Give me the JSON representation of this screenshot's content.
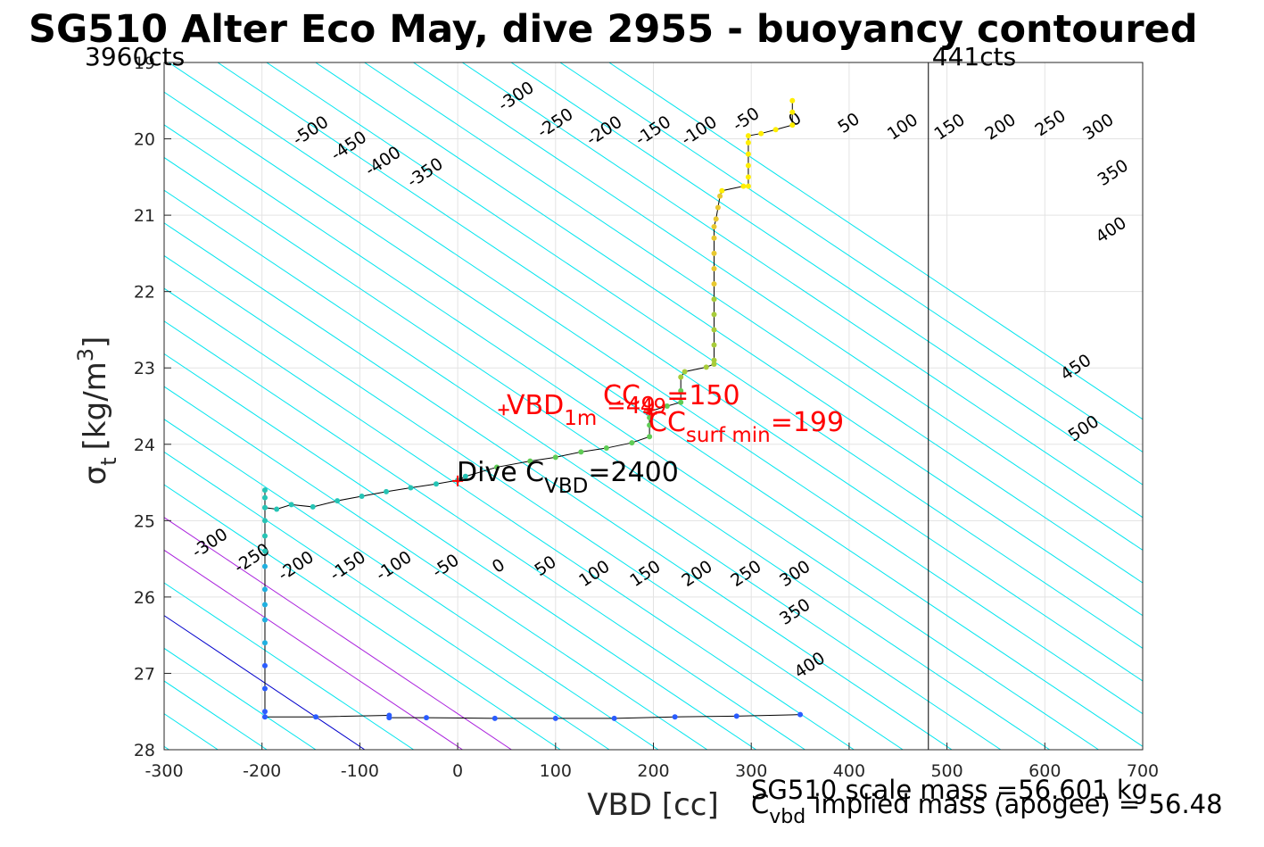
{
  "chart_data": {
    "type": "line",
    "title": "SG510 Alter Eco May, dive 2955 - buoyancy contoured",
    "xlabel": "VBD [cc]",
    "ylabel": {
      "main": "σ",
      "sub": "t",
      "units": "[kg/m",
      "sup": "3",
      "close": "]"
    },
    "xlim": [
      -300,
      700
    ],
    "ylim": [
      19,
      28
    ],
    "y_reversed": true,
    "grid": true,
    "x_ticks": [
      -300,
      -200,
      -100,
      0,
      100,
      200,
      300,
      400,
      500,
      600,
      700
    ],
    "y_ticks": [
      19,
      20,
      21,
      22,
      23,
      24,
      25,
      26,
      27,
      28
    ],
    "contour_levels": [
      -500,
      -450,
      -400,
      -350,
      -300,
      -250,
      -200,
      -150,
      -100,
      -50,
      0,
      50,
      100,
      150,
      200,
      250,
      300,
      350,
      400,
      450,
      500
    ],
    "contour_slope_cc_per_kgm3": 116.7,
    "contour_zero_vbd_at_sigma28": -95,
    "contour_colors": {
      "default": "#00e5ee",
      "zero": "#0000cc",
      "highlight": "#aa22dd"
    },
    "highlight_levels": [
      100,
      150
    ],
    "contour_labels_top": [
      {
        "level": -500,
        "vbd": -150,
        "sigma": 19.9
      },
      {
        "level": -450,
        "vbd": -111,
        "sigma": 20.1
      },
      {
        "level": -400,
        "vbd": -76,
        "sigma": 20.3
      },
      {
        "level": -350,
        "vbd": -33,
        "sigma": 20.45
      },
      {
        "level": -300,
        "vbd": 60,
        "sigma": 19.45
      },
      {
        "level": -250,
        "vbd": 100,
        "sigma": 19.8
      },
      {
        "level": -200,
        "vbd": 150,
        "sigma": 19.9
      },
      {
        "level": -150,
        "vbd": 200,
        "sigma": 19.9
      },
      {
        "level": -100,
        "vbd": 247,
        "sigma": 19.9
      },
      {
        "level": -50,
        "vbd": 295,
        "sigma": 19.75
      },
      {
        "level": 0,
        "vbd": 345,
        "sigma": 19.75
      },
      {
        "level": 50,
        "vbd": 400,
        "sigma": 19.8
      },
      {
        "level": 100,
        "vbd": 455,
        "sigma": 19.85
      },
      {
        "level": 150,
        "vbd": 503,
        "sigma": 19.85
      },
      {
        "level": 200,
        "vbd": 555,
        "sigma": 19.85
      },
      {
        "level": 250,
        "vbd": 606,
        "sigma": 19.8
      },
      {
        "level": 300,
        "vbd": 655,
        "sigma": 19.85
      },
      {
        "level": 350,
        "vbd": 670,
        "sigma": 20.45
      },
      {
        "level": 400,
        "vbd": 668,
        "sigma": 21.2
      },
      {
        "level": 450,
        "vbd": 632,
        "sigma": 23.0
      },
      {
        "level": 500,
        "vbd": 640,
        "sigma": 23.8
      }
    ],
    "contour_labels_bottom": [
      {
        "level": -300,
        "vbd": -253,
        "sigma": 25.3
      },
      {
        "level": -250,
        "vbd": -210,
        "sigma": 25.5
      },
      {
        "level": -200,
        "vbd": -165,
        "sigma": 25.6
      },
      {
        "level": -150,
        "vbd": -112,
        "sigma": 25.6
      },
      {
        "level": -100,
        "vbd": -65,
        "sigma": 25.6
      },
      {
        "level": -50,
        "vbd": -12,
        "sigma": 25.6
      },
      {
        "level": 0,
        "vbd": 42,
        "sigma": 25.6
      },
      {
        "level": 50,
        "vbd": 90,
        "sigma": 25.6
      },
      {
        "level": 100,
        "vbd": 140,
        "sigma": 25.7
      },
      {
        "level": 150,
        "vbd": 192,
        "sigma": 25.7
      },
      {
        "level": 200,
        "vbd": 245,
        "sigma": 25.7
      },
      {
        "level": 250,
        "vbd": 295,
        "sigma": 25.7
      },
      {
        "level": 300,
        "vbd": 345,
        "sigma": 25.7
      },
      {
        "level": 350,
        "vbd": 345,
        "sigma": 26.2
      },
      {
        "level": 400,
        "vbd": 360,
        "sigma": 26.9
      }
    ],
    "vlines": [
      {
        "x": 481,
        "label_top": "441cts"
      }
    ],
    "corner_label_left": "3960cts",
    "profile": [
      [
        342,
        19.5
      ],
      [
        342,
        19.65
      ],
      [
        342,
        19.82
      ],
      [
        325,
        19.88
      ],
      [
        310,
        19.93
      ],
      [
        297,
        19.96
      ],
      [
        297,
        20.05
      ],
      [
        297,
        20.2
      ],
      [
        297,
        20.35
      ],
      [
        297,
        20.5
      ],
      [
        297,
        20.62
      ],
      [
        292,
        20.62
      ],
      [
        270,
        20.68
      ],
      [
        268,
        20.75
      ],
      [
        266,
        20.9
      ],
      [
        264,
        21.05
      ],
      [
        262,
        21.15
      ],
      [
        262,
        21.3
      ],
      [
        262,
        21.5
      ],
      [
        262,
        21.7
      ],
      [
        262,
        21.9
      ],
      [
        262,
        22.1
      ],
      [
        262,
        22.3
      ],
      [
        262,
        22.5
      ],
      [
        262,
        22.7
      ],
      [
        262,
        22.9
      ],
      [
        262,
        22.95
      ],
      [
        254,
        22.99
      ],
      [
        232,
        23.05
      ],
      [
        228,
        23.12
      ],
      [
        228,
        23.3
      ],
      [
        228,
        23.45
      ],
      [
        214,
        23.5
      ],
      [
        196,
        23.57
      ],
      [
        196,
        23.65
      ],
      [
        196,
        23.75
      ],
      [
        196,
        23.9
      ],
      [
        178,
        23.98
      ],
      [
        152,
        24.05
      ],
      [
        126,
        24.1
      ],
      [
        100,
        24.17
      ],
      [
        74,
        24.22
      ],
      [
        40,
        24.3
      ],
      [
        8,
        24.42
      ],
      [
        0,
        24.47
      ],
      [
        -22,
        24.52
      ],
      [
        -48,
        24.57
      ],
      [
        -73,
        24.62
      ],
      [
        -98,
        24.68
      ],
      [
        -123,
        24.74
      ],
      [
        -148,
        24.82
      ],
      [
        -170,
        24.79
      ],
      [
        -185,
        24.85
      ],
      [
        -197,
        24.83
      ],
      [
        -197,
        24.7
      ],
      [
        -197,
        24.6
      ],
      [
        -197,
        25.0
      ],
      [
        -197,
        25.2
      ],
      [
        -197,
        25.4
      ],
      [
        -197,
        25.6
      ],
      [
        -197,
        25.9
      ],
      [
        -197,
        26.1
      ],
      [
        -197,
        26.3
      ],
      [
        -197,
        26.6
      ],
      [
        -197,
        26.9
      ],
      [
        -197,
        27.2
      ],
      [
        -197,
        27.5
      ],
      [
        -197,
        27.57
      ],
      [
        -145,
        27.57
      ],
      [
        -70,
        27.55
      ],
      [
        -70,
        27.58
      ],
      [
        -32,
        27.58
      ],
      [
        38,
        27.59
      ],
      [
        100,
        27.59
      ],
      [
        160,
        27.59
      ],
      [
        222,
        27.57
      ],
      [
        285,
        27.56
      ],
      [
        350,
        27.54
      ]
    ],
    "profile_marker_colors": [
      "#2a5cff",
      "#1fb0e0",
      "#26c4b5",
      "#5fcc55",
      "#a8cc3a",
      "#e8c830",
      "#ffee00"
    ],
    "markers": [
      {
        "x": 47,
        "y": 23.55,
        "label": "VBD",
        "label_sub": "1m"
      },
      {
        "x": 196,
        "y": 23.55,
        "label": "CC",
        "label_sub": "49"
      },
      {
        "x": 198,
        "y": 23.6,
        "label": "CC",
        "label_sub": "surf min",
        "value_text": "=199"
      },
      {
        "x": 0,
        "y": 24.48,
        "label": "Dive C",
        "label_sub": "VBD",
        "value_text": "=2400"
      }
    ],
    "red_annotations": {
      "vbd1m_main": "VBD",
      "vbd1m_sub": "1m",
      "cc_main": "CC",
      "cc_sub": "49",
      "cc_value": "=150",
      "cc49_overlap": "=49",
      "ccsurf_main": "CC",
      "ccsurf_sub": "surf min",
      "ccsurf_value": "=199"
    },
    "dive_label": {
      "main": "Dive C",
      "sub": "VBD",
      "value": "=2400"
    },
    "footer_line1": "SG510 scale mass =56.601 kg",
    "footer_line2": {
      "main": "C",
      "sub": "vbd",
      "rest": " implied mass (apogee) = 56.48"
    }
  }
}
